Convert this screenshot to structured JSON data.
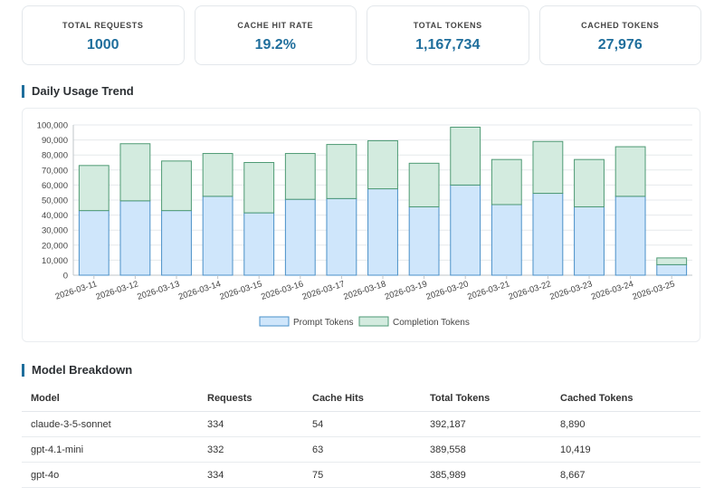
{
  "stats": [
    {
      "label": "TOTAL REQUESTS",
      "value": "1000"
    },
    {
      "label": "CACHE HIT RATE",
      "value": "19.2%"
    },
    {
      "label": "TOTAL TOKENS",
      "value": "1,167,734"
    },
    {
      "label": "CACHED TOKENS",
      "value": "27,976"
    }
  ],
  "trend_title": "Daily Usage Trend",
  "breakdown_title": "Model Breakdown",
  "chart_data": {
    "type": "bar",
    "stacked": true,
    "categories": [
      "2026-03-11",
      "2026-03-12",
      "2026-03-13",
      "2026-03-14",
      "2026-03-15",
      "2026-03-16",
      "2026-03-17",
      "2026-03-18",
      "2026-03-19",
      "2026-03-20",
      "2026-03-21",
      "2026-03-22",
      "2026-03-23",
      "2026-03-24",
      "2026-03-25"
    ],
    "series": [
      {
        "name": "Prompt Tokens",
        "values": [
          43000,
          49500,
          43000,
          52500,
          41500,
          50500,
          51000,
          57500,
          45500,
          60000,
          47000,
          54500,
          45500,
          52500,
          7000
        ],
        "color": "#cfe6fb",
        "stroke": "#4a90c8"
      },
      {
        "name": "Completion Tokens",
        "values": [
          30000,
          38000,
          33000,
          28500,
          33500,
          30500,
          36000,
          32000,
          29000,
          38500,
          30000,
          34500,
          31500,
          33000,
          4500
        ],
        "color": "#d3ebdf",
        "stroke": "#4e9a74"
      }
    ],
    "xlabel": "",
    "ylabel": "",
    "ylim": [
      0,
      100000
    ],
    "yticks": [
      "0",
      "10,000",
      "20,000",
      "30,000",
      "40,000",
      "50,000",
      "60,000",
      "70,000",
      "80,000",
      "90,000",
      "100,000"
    ],
    "grid": true,
    "legend": "bottom"
  },
  "table": {
    "columns": [
      "Model",
      "Requests",
      "Cache Hits",
      "Total Tokens",
      "Cached Tokens"
    ],
    "rows": [
      [
        "claude-3-5-sonnet",
        "334",
        "54",
        "392,187",
        "8,890"
      ],
      [
        "gpt-4.1-mini",
        "332",
        "63",
        "389,558",
        "10,419"
      ],
      [
        "gpt-4o",
        "334",
        "75",
        "385,989",
        "8,667"
      ]
    ]
  }
}
